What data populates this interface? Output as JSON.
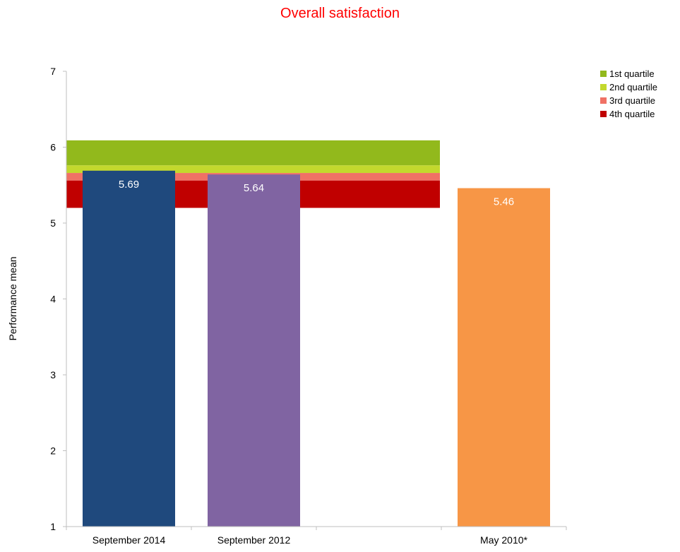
{
  "chart_data": {
    "type": "bar",
    "title": "Overall satisfaction",
    "ylabel": "Performance mean",
    "xlabel": "",
    "ylim": [
      1,
      7
    ],
    "yticks": [
      1,
      2,
      3,
      4,
      5,
      6,
      7
    ],
    "grid": false,
    "legend_position": "top-right",
    "categories": [
      "September 2014",
      "September 2012",
      "",
      "May 2010*"
    ],
    "values": [
      5.69,
      5.64,
      null,
      5.46
    ],
    "data_labels": [
      "5.69",
      "5.64",
      "",
      "5.46"
    ],
    "bar_colors": [
      "#1f497d",
      "#8064a2",
      "",
      "#f79646"
    ],
    "quartile_bands": {
      "span_categories": [
        "September 2014",
        "September 2012",
        ""
      ],
      "bands": [
        {
          "name": "1st quartile",
          "from": 5.76,
          "to": 6.09,
          "color": "#92b91c"
        },
        {
          "name": "2nd quartile",
          "from": 5.66,
          "to": 5.76,
          "color": "#c3d82d"
        },
        {
          "name": "3rd quartile",
          "from": 5.56,
          "to": 5.66,
          "color": "#f07165"
        },
        {
          "name": "4th quartile",
          "from": 5.2,
          "to": 5.56,
          "color": "#c00000"
        }
      ]
    }
  }
}
